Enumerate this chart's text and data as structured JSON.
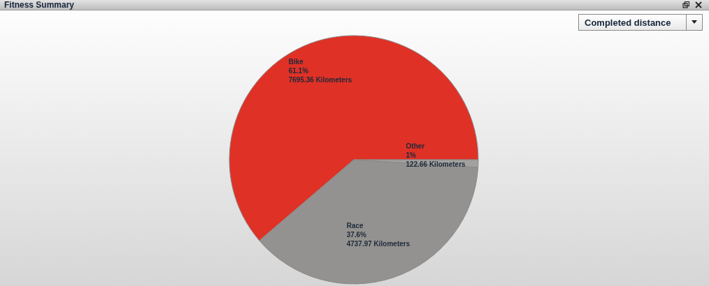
{
  "chart_data": {
    "type": "pie",
    "title": "Fitness Summary",
    "categories": [
      "Bike",
      "Race",
      "Other"
    ],
    "values": [
      7695.36,
      4737.97,
      122.66
    ],
    "colors": [
      "#e03126",
      "#949290",
      "#a3a19f"
    ],
    "value_labels": [
      "61.1%\n7695.36 Kilometers",
      "37.6%\n4737.97 Kilometers",
      "1%\n122.66 Kilometers"
    ],
    "annotations": [
      "Completed distance"
    ],
    "legend": false
  }
}
